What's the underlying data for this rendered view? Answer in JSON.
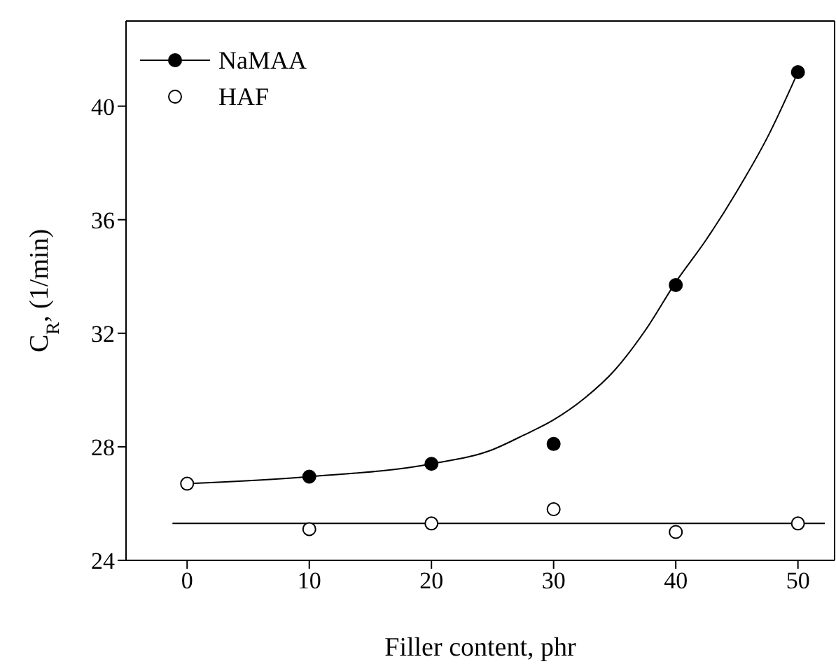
{
  "chart_data": {
    "type": "scatter",
    "xlabel": "Filler content, phr",
    "ylabel": "C$_{R}$, (1/min)",
    "xlim": [
      -5,
      53
    ],
    "xticks": [
      0,
      10,
      20,
      30,
      40,
      50
    ],
    "ylim": [
      24,
      43
    ],
    "yticks": [
      24,
      28,
      32,
      36,
      40
    ],
    "legend": "top left",
    "marker": "circle",
    "series": [
      {
        "name": "NaMAA",
        "color": "#000000",
        "x": [
          10,
          20,
          30,
          40,
          50
        ],
        "values": [
          26.95,
          27.4,
          28.1,
          33.7,
          41.2
        ]
      },
      {
        "type": "line",
        "color": "#000000",
        "marker": "none",
        "line_style": "solid",
        "x": [
          0,
          10,
          20,
          25,
          27.5,
          30,
          32.5,
          35,
          37.5,
          40,
          42.5,
          45,
          47.5,
          50
        ],
        "values": [
          26.7,
          26.95,
          27.4,
          27.9,
          28.4,
          28.95,
          29.7,
          30.7,
          32.1,
          33.8,
          35.3,
          37.0,
          38.9,
          41.2
        ]
      },
      {
        "type": "line",
        "color": "#000000",
        "marker": "none",
        "line_style": "solid",
        "x": [
          -1.2,
          52.2
        ],
        "values": [
          25.3,
          25.3
        ]
      },
      {
        "name": "HAF",
        "color": "#ffffff",
        "x": [
          0,
          10,
          20,
          30,
          40,
          50
        ],
        "values": [
          26.7,
          25.1,
          25.3,
          25.8,
          25.0,
          25.3
        ]
      }
    ]
  }
}
